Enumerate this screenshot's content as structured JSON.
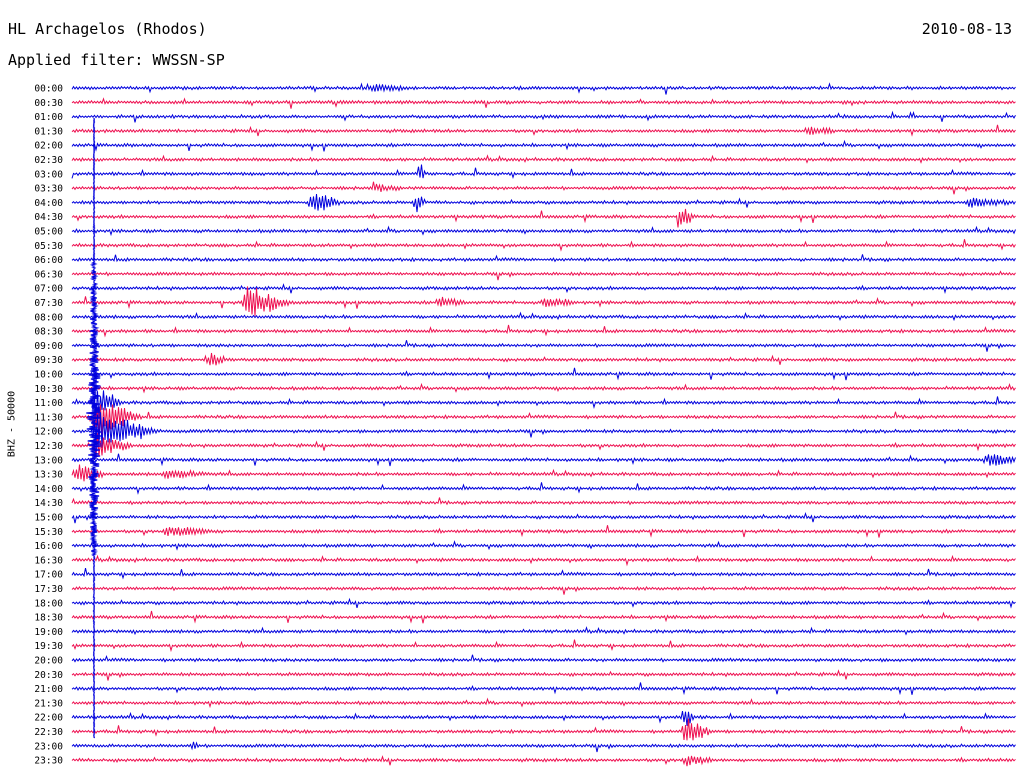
{
  "header": {
    "station": "HL Archagelos (Rhodos)",
    "date": "2010-08-13",
    "filter": "Applied filter: WWSSN-SP"
  },
  "chart_data": {
    "type": "line",
    "title": "HL Archagelos (Rhodos)",
    "ylabel": "BHZ - 50000",
    "xlabel": "",
    "colors": {
      "even_rows": "#0000dd",
      "odd_rows": "#ee1050"
    },
    "grid": false,
    "rows": [
      "00:00",
      "00:30",
      "01:00",
      "01:30",
      "02:00",
      "02:30",
      "03:00",
      "03:30",
      "04:00",
      "04:30",
      "05:00",
      "05:30",
      "06:00",
      "06:30",
      "07:00",
      "07:30",
      "08:00",
      "08:30",
      "09:00",
      "09:30",
      "10:00",
      "10:30",
      "11:00",
      "11:30",
      "12:00",
      "12:30",
      "13:00",
      "13:30",
      "14:00",
      "14:30",
      "15:00",
      "15:30",
      "16:00",
      "16:30",
      "17:00",
      "17:30",
      "18:00",
      "18:30",
      "19:00",
      "19:30",
      "20:00",
      "20:30",
      "21:00",
      "21:30",
      "22:00",
      "22:30",
      "23:00",
      "23:30"
    ],
    "events": [
      {
        "row": "00:00",
        "x": 0.32,
        "amp": 3,
        "dur": 0.04
      },
      {
        "row": "01:30",
        "x": 0.78,
        "amp": 4,
        "dur": 0.03
      },
      {
        "row": "03:00",
        "x": 0.37,
        "amp": 14,
        "dur": 0.005
      },
      {
        "row": "03:30",
        "x": 0.32,
        "amp": 3,
        "dur": 0.03
      },
      {
        "row": "04:00",
        "x": 0.255,
        "amp": 12,
        "dur": 0.03
      },
      {
        "row": "04:00",
        "x": 0.365,
        "amp": 10,
        "dur": 0.01
      },
      {
        "row": "04:00",
        "x": 0.95,
        "amp": 5,
        "dur": 0.05
      },
      {
        "row": "04:30",
        "x": 0.645,
        "amp": 12,
        "dur": 0.015
      },
      {
        "row": "07:30",
        "x": 0.185,
        "amp": 16,
        "dur": 0.05
      },
      {
        "row": "07:30",
        "x": 0.39,
        "amp": 5,
        "dur": 0.03
      },
      {
        "row": "07:30",
        "x": 0.5,
        "amp": 4,
        "dur": 0.04
      },
      {
        "row": "09:30",
        "x": 0.145,
        "amp": 7,
        "dur": 0.02
      },
      {
        "row": "11:00",
        "x": 0.025,
        "amp": 16,
        "dur": 0.03
      },
      {
        "row": "11:30",
        "x": 0.025,
        "amp": 20,
        "dur": 0.05
      },
      {
        "row": "12:00",
        "x": 0.025,
        "amp": 20,
        "dur": 0.07
      },
      {
        "row": "12:30",
        "x": 0.025,
        "amp": 12,
        "dur": 0.04
      },
      {
        "row": "13:00",
        "x": 0.97,
        "amp": 6,
        "dur": 0.04
      },
      {
        "row": "13:30",
        "x": 0.005,
        "amp": 10,
        "dur": 0.03
      },
      {
        "row": "13:30",
        "x": 0.1,
        "amp": 4,
        "dur": 0.05
      },
      {
        "row": "15:30",
        "x": 0.1,
        "amp": 4,
        "dur": 0.06
      },
      {
        "row": "22:00",
        "x": 0.65,
        "amp": 12,
        "dur": 0.01
      },
      {
        "row": "22:30",
        "x": 0.65,
        "amp": 14,
        "dur": 0.03
      },
      {
        "row": "23:00",
        "x": 0.13,
        "amp": 6,
        "dur": 0.005
      },
      {
        "row": "23:30",
        "x": 0.65,
        "amp": 5,
        "dur": 0.03
      }
    ]
  }
}
